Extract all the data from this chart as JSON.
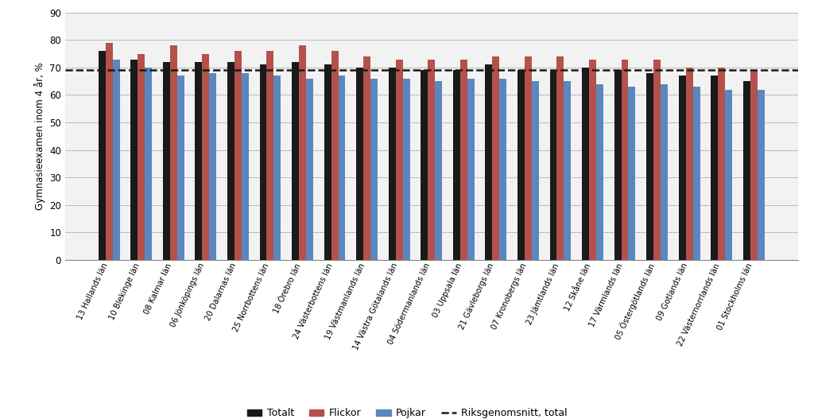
{
  "categories": [
    "13 Hallands län",
    "10 Blekinge län",
    "08 Kalmar län",
    "06 Jönköpings län",
    "20 Dalarnas län",
    "25 Norrbottens län",
    "18 Örebro län",
    "24 Västerbottens län",
    "19 Västmanlands län",
    "14 Västra Götalands län",
    "04 Södermanlands län",
    "03 Uppsala län",
    "21 Gävleborgs län",
    "07 Kronobergs län",
    "23 Jämtlands län",
    "12 Skåne län",
    "17 Värmlands län",
    "05 Östergötlands län",
    "09 Gotlands län",
    "22 Västernorrlands län",
    "01 Stockholms län"
  ],
  "totalt": [
    76,
    73,
    72,
    72,
    72,
    71,
    72,
    71,
    70,
    70,
    69,
    69,
    71,
    69,
    69,
    70,
    69,
    68,
    67,
    67,
    65
  ],
  "flickor": [
    79,
    75,
    78,
    75,
    76,
    76,
    78,
    76,
    74,
    73,
    73,
    73,
    74,
    74,
    74,
    73,
    73,
    73,
    70,
    70,
    69
  ],
  "pojkar": [
    73,
    70,
    67,
    68,
    68,
    67,
    66,
    67,
    66,
    66,
    65,
    66,
    66,
    65,
    65,
    64,
    63,
    64,
    63,
    62,
    62
  ],
  "riksgenomsnitt": 69,
  "ylabel": "Gymnasieexamen inom 4 år, %",
  "ylim": [
    0,
    90
  ],
  "yticks": [
    0,
    10,
    20,
    30,
    40,
    50,
    60,
    70,
    80,
    90
  ],
  "bar_color_totalt": "#1a1a1a",
  "bar_color_flickor": "#b5514b",
  "bar_color_pojkar": "#5b87c0",
  "riksgenomsnitt_color": "#1a1a1a",
  "legend_labels": [
    "Totalt",
    "Flickor",
    "Pojkar",
    "Riksgenomsnitt, total"
  ],
  "bar_width": 0.22,
  "background_color": "#f2f2f2"
}
